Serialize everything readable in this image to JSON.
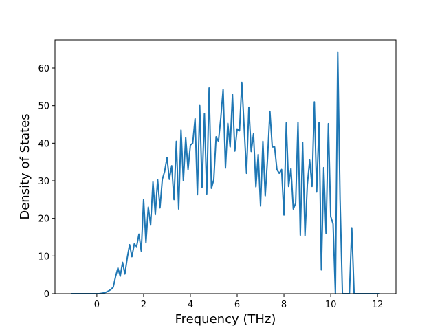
{
  "chart_data": {
    "type": "line",
    "xlabel": "Frequency (THz)",
    "ylabel": "Density of States",
    "color": "#1f77b4",
    "x": [
      -1.1,
      -1.0,
      -0.9,
      -0.8,
      -0.7,
      -0.6,
      -0.5,
      -0.4,
      -0.3,
      -0.2,
      -0.1,
      0.0,
      0.1,
      0.2,
      0.3,
      0.4,
      0.5,
      0.6,
      0.7,
      0.8,
      0.9,
      1.0,
      1.1,
      1.2,
      1.3,
      1.4,
      1.5,
      1.6,
      1.7,
      1.8,
      1.9,
      2.0,
      2.1,
      2.2,
      2.3,
      2.4,
      2.5,
      2.6,
      2.7,
      2.8,
      2.9,
      3.0,
      3.1,
      3.2,
      3.3,
      3.4,
      3.5,
      3.6,
      3.7,
      3.8,
      3.9,
      4.0,
      4.1,
      4.2,
      4.3,
      4.4,
      4.5,
      4.6,
      4.7,
      4.8,
      4.9,
      5.0,
      5.1,
      5.2,
      5.3,
      5.4,
      5.5,
      5.6,
      5.7,
      5.8,
      5.9,
      6.0,
      6.1,
      6.2,
      6.3,
      6.4,
      6.5,
      6.6,
      6.7,
      6.8,
      6.9,
      7.0,
      7.1,
      7.2,
      7.3,
      7.4,
      7.5,
      7.6,
      7.7,
      7.8,
      7.9,
      8.0,
      8.1,
      8.2,
      8.3,
      8.4,
      8.5,
      8.6,
      8.7,
      8.8,
      8.9,
      9.0,
      9.1,
      9.2,
      9.3,
      9.4,
      9.5,
      9.6,
      9.7,
      9.8,
      9.9,
      10.0,
      10.1,
      10.2,
      10.3,
      10.4,
      10.5,
      10.6,
      10.7,
      10.8,
      10.9,
      11.0,
      11.1,
      11.2,
      11.3,
      11.4,
      11.5,
      11.6,
      11.7,
      11.8,
      11.9,
      12.0,
      12.1
    ],
    "values": [
      0,
      0,
      0,
      0,
      0,
      0,
      0,
      0,
      0,
      0,
      0,
      0,
      0,
      0.1,
      0.2,
      0.4,
      0.7,
      1.1,
      1.7,
      4.5,
      6.8,
      4.6,
      8.3,
      5.2,
      9.5,
      13.0,
      9.8,
      13.2,
      12.5,
      15.8,
      11.3,
      25.0,
      13.5,
      23.0,
      18.2,
      29.7,
      21.0,
      30.3,
      22.8,
      30.4,
      32.5,
      36.2,
      30.4,
      34.0,
      25.0,
      40.5,
      22.5,
      43.5,
      30.0,
      41.5,
      33.0,
      39.5,
      40.0,
      46.5,
      26.3,
      50.0,
      28.2,
      47.9,
      26.5,
      54.7,
      28.0,
      30.3,
      41.7,
      40.5,
      46.7,
      54.3,
      33.4,
      45.3,
      39.0,
      53.0,
      37.9,
      43.8,
      43.3,
      56.2,
      44.0,
      32.0,
      49.6,
      37.8,
      42.5,
      28.4,
      37.0,
      23.3,
      40.5,
      26.0,
      36.0,
      48.5,
      39.0,
      39.0,
      33.0,
      32.0,
      33.0,
      20.9,
      45.4,
      28.5,
      33.3,
      22.5,
      24.0,
      45.6,
      15.5,
      40.2,
      15.4,
      29.0,
      35.5,
      28.5,
      51.0,
      27.0,
      45.5,
      6.3,
      33.5,
      16.0,
      45.2,
      20.5,
      18.5,
      0,
      64.3,
      25.0,
      0,
      0,
      0,
      0,
      17.5,
      0,
      0,
      0,
      0,
      0,
      0,
      0,
      0,
      0,
      0,
      0,
      0
    ],
    "xlim": [
      -1.79,
      12.79
    ],
    "ylim": [
      0,
      67.5
    ],
    "xticks": [
      0,
      2,
      4,
      6,
      8,
      10,
      12
    ],
    "yticks": [
      0,
      10,
      20,
      30,
      40,
      50,
      60
    ]
  }
}
